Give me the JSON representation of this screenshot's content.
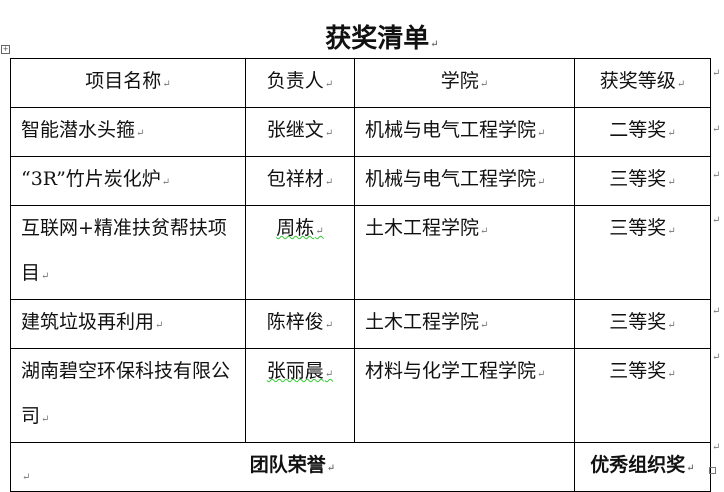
{
  "document": {
    "title": "获奖清单",
    "table": {
      "headers": [
        "项目名称",
        "负责人",
        "学院",
        "获奖等级"
      ],
      "rows": [
        {
          "project": "智能潜水头箍",
          "leader": "张继文",
          "college": "机械与电气工程学院",
          "award": "二等奖"
        },
        {
          "project": "“3R”竹片炭化炉",
          "leader": "包祥材",
          "college": "机械与电气工程学院",
          "award": "三等奖"
        },
        {
          "project": "互联网+精准扶贫帮扶项目",
          "leader": "周栋",
          "college": "土木工程学院",
          "award": "三等奖"
        },
        {
          "project": "建筑垃圾再利用",
          "leader": "陈梓俊",
          "college": "土木工程学院",
          "award": "三等奖"
        },
        {
          "project": "湖南碧空环保科技有限公司",
          "leader": "张丽晨",
          "college": "材料与化学工程学院",
          "award": "三等奖"
        }
      ],
      "footer": {
        "label": "团队荣誉",
        "award": "优秀组织奖"
      }
    }
  }
}
